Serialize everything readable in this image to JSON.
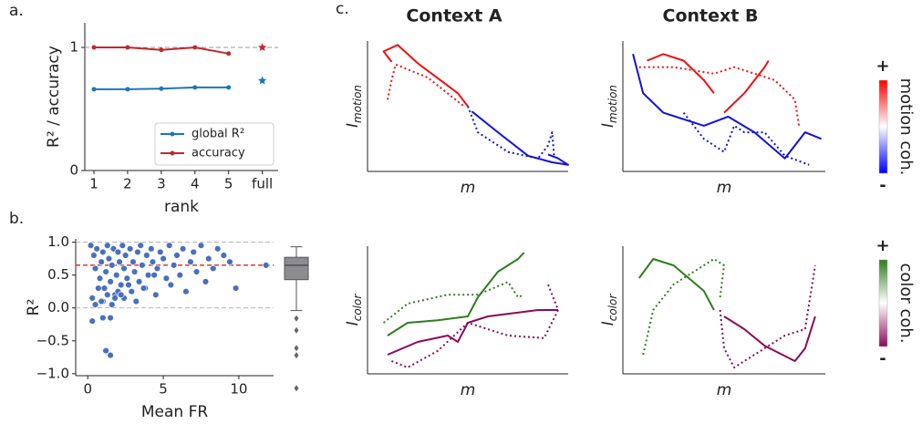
{
  "panel_labels": [
    "a.",
    "b.",
    "c."
  ],
  "chart_data": [
    {
      "type": "line",
      "xlabel": "rank",
      "ylabel": "R² / accuracy",
      "categories": [
        "1",
        "2",
        "3",
        "4",
        "5",
        "full"
      ],
      "ylim": [
        0,
        1.2
      ],
      "yticks": [
        0,
        1
      ],
      "hlines": [
        {
          "value": 1,
          "color": "#999999"
        }
      ],
      "last_point_marker": "star",
      "legend": "lower right",
      "series": [
        {
          "name": "global R²",
          "color": "#1f77b4",
          "values": [
            0.66,
            0.66,
            0.665,
            0.675,
            0.675,
            0.73
          ]
        },
        {
          "name": "accuracy",
          "color": "#c0282d",
          "values": [
            1.0,
            1.0,
            0.98,
            1.0,
            0.95,
            1.0
          ]
        }
      ]
    },
    {
      "type": "scatter",
      "xlabel": "Mean FR",
      "ylabel": "R²",
      "xlim": [
        -0.8,
        12.3
      ],
      "xticks": [
        0,
        5,
        10
      ],
      "ylim": [
        -1.03,
        1.05
      ],
      "yticks": [
        {
          "value": -1,
          "label": "−1.0"
        },
        {
          "value": -0.5,
          "label": "−0.5"
        },
        {
          "value": 0,
          "label": "0.0"
        },
        {
          "value": 0.5,
          "label": "0.5"
        },
        {
          "value": 1,
          "label": "1.0"
        }
      ],
      "hlines": [
        {
          "value": 1,
          "color": "#aaaaaa"
        },
        {
          "value": 0,
          "color": "#aaaaaa"
        },
        {
          "value": 0.65,
          "color": "#d62728"
        }
      ],
      "color": "#4a6fbf",
      "x": [
        0.2,
        0.4,
        0.5,
        0.6,
        0.8,
        0.9,
        1.0,
        1.1,
        1.2,
        1.3,
        1.4,
        1.5,
        1.6,
        1.7,
        1.8,
        1.9,
        2.0,
        2.1,
        2.2,
        2.3,
        2.4,
        2.5,
        2.6,
        2.8,
        2.9,
        3.0,
        3.1,
        3.3,
        3.4,
        3.5,
        3.6,
        3.8,
        3.9,
        4.0,
        4.2,
        4.3,
        4.5,
        4.6,
        4.8,
        5.0,
        5.2,
        5.4,
        5.5,
        5.7,
        5.9,
        6.1,
        6.3,
        6.5,
        6.8,
        7.0,
        7.2,
        7.5,
        7.8,
        8.0,
        8.3,
        8.6,
        9.0,
        9.4,
        9.8,
        11.8,
        0.3,
        0.7,
        1.0,
        1.3,
        1.6,
        2.0,
        2.4,
        2.7,
        3.2,
        3.7,
        4.4,
        0.3,
        1.0,
        1.5,
        1.2,
        1.5,
        0.5,
        0.9,
        1.8,
        2.2
      ],
      "values": [
        0.95,
        0.8,
        0.6,
        0.9,
        0.45,
        0.7,
        0.85,
        0.3,
        0.55,
        0.95,
        0.75,
        0.4,
        0.65,
        0.9,
        0.2,
        0.5,
        0.85,
        0.7,
        0.35,
        0.95,
        0.6,
        0.8,
        0.45,
        0.9,
        0.25,
        0.7,
        0.55,
        0.85,
        0.4,
        0.95,
        0.65,
        0.3,
        0.8,
        0.5,
        0.9,
        0.7,
        0.2,
        0.6,
        0.85,
        0.75,
        0.45,
        0.95,
        0.35,
        0.65,
        0.8,
        0.5,
        0.9,
        0.25,
        0.7,
        0.85,
        0.55,
        0.95,
        0.4,
        0.75,
        0.6,
        0.9,
        0.8,
        0.7,
        0.3,
        0.65,
        0.15,
        0.3,
        0.1,
        0.2,
        0.05,
        0.25,
        0.15,
        0.35,
        0.1,
        0.3,
        0.5,
        -0.2,
        -0.15,
        -0.15,
        -0.65,
        -0.72,
        0.05,
        0.1,
        0.15,
        0.2
      ],
      "box": {
        "whislo": -0.04,
        "q1": 0.43,
        "med": 0.65,
        "q3": 0.77,
        "whishi": 0.93,
        "fliers": [
          -0.16,
          -0.34,
          -0.61,
          -0.72,
          -1.22
        ],
        "color": "#8c8c90"
      }
    },
    {
      "type": "line",
      "title": "Context A",
      "title_color": "#7b1a4e",
      "xlabel": "m",
      "ylabel": "I",
      "ylabel_sub": "motion",
      "xlim": [
        0,
        1
      ],
      "ylim": [
        0,
        1
      ],
      "series": [
        {
          "color": "#ee1111",
          "dash": false,
          "x": [
            0.12,
            0.08,
            0.15,
            0.25,
            0.45,
            0.5
          ],
          "values": [
            0.84,
            0.92,
            0.97,
            0.83,
            0.6,
            0.5
          ]
        },
        {
          "color": "#ee1111",
          "dash": true,
          "x": [
            0.1,
            0.12,
            0.14,
            0.3,
            0.48
          ],
          "values": [
            0.55,
            0.7,
            0.82,
            0.72,
            0.5
          ]
        },
        {
          "color": "#1111dd",
          "dash": false,
          "x": [
            0.52,
            0.65,
            0.8,
            0.92,
            1.0,
            0.95,
            0.9
          ],
          "values": [
            0.46,
            0.3,
            0.12,
            0.07,
            0.05,
            0.1,
            0.13
          ]
        },
        {
          "color": "#1111dd",
          "dash": true,
          "x": [
            0.5,
            0.55,
            0.7,
            0.85,
            0.9,
            0.92,
            0.93
          ],
          "values": [
            0.5,
            0.3,
            0.15,
            0.1,
            0.2,
            0.3,
            0.12
          ]
        }
      ]
    },
    {
      "type": "line",
      "title": "Context B",
      "title_color": "#b08a4a",
      "xlabel": "m",
      "ylabel": "I",
      "ylabel_sub": "motion",
      "xlim": [
        0,
        1
      ],
      "ylim": [
        0,
        1
      ],
      "series": [
        {
          "color": "#ee1111",
          "dash": false,
          "x": [
            0.12,
            0.2,
            0.3,
            0.4,
            0.45
          ],
          "values": [
            0.85,
            0.9,
            0.85,
            0.7,
            0.6
          ]
        },
        {
          "color": "#ee1111",
          "dash": false,
          "x": [
            0.5,
            0.6,
            0.7,
            0.72
          ],
          "values": [
            0.45,
            0.6,
            0.8,
            0.85
          ]
        },
        {
          "color": "#ee1111",
          "dash": true,
          "x": [
            0.08,
            0.25,
            0.45,
            0.55,
            0.75,
            0.85,
            0.87
          ],
          "values": [
            0.8,
            0.8,
            0.75,
            0.8,
            0.7,
            0.55,
            0.35
          ]
        },
        {
          "color": "#1111dd",
          "dash": false,
          "x": [
            0.05,
            0.1,
            0.2,
            0.4,
            0.52,
            0.65,
            0.8,
            0.9,
            0.98
          ],
          "values": [
            0.9,
            0.6,
            0.45,
            0.35,
            0.42,
            0.3,
            0.1,
            0.3,
            0.25
          ]
        },
        {
          "color": "#1111dd",
          "dash": true,
          "x": [
            0.3,
            0.35,
            0.4,
            0.45,
            0.5,
            0.55,
            0.6,
            0.7,
            0.8,
            0.92
          ],
          "values": [
            0.45,
            0.35,
            0.25,
            0.2,
            0.15,
            0.35,
            0.3,
            0.3,
            0.12,
            0.05
          ]
        }
      ]
    },
    {
      "type": "line",
      "xlabel": "m",
      "ylabel": "I",
      "ylabel_sub": "color",
      "xlim": [
        0,
        1
      ],
      "ylim": [
        0,
        1
      ],
      "series": [
        {
          "color": "#2e7d1e",
          "dash": false,
          "x": [
            0.1,
            0.2,
            0.35,
            0.5,
            0.55,
            0.65,
            0.75,
            0.78
          ],
          "values": [
            0.3,
            0.4,
            0.42,
            0.45,
            0.6,
            0.8,
            0.9,
            0.95
          ]
        },
        {
          "color": "#2e7d1e",
          "dash": true,
          "x": [
            0.08,
            0.2,
            0.4,
            0.55,
            0.7,
            0.75,
            0.78
          ],
          "values": [
            0.4,
            0.55,
            0.62,
            0.62,
            0.72,
            0.6,
            0.62
          ]
        },
        {
          "color": "#8b0a5a",
          "dash": false,
          "x": [
            0.1,
            0.25,
            0.4,
            0.45,
            0.5,
            0.6,
            0.85,
            0.95
          ],
          "values": [
            0.15,
            0.25,
            0.3,
            0.25,
            0.4,
            0.45,
            0.5,
            0.5
          ]
        },
        {
          "color": "#8b0a5a",
          "dash": true,
          "x": [
            0.12,
            0.2,
            0.35,
            0.5,
            0.7,
            0.88,
            0.95,
            0.9
          ],
          "values": [
            0.1,
            0.05,
            0.18,
            0.4,
            0.3,
            0.28,
            0.5,
            0.7
          ]
        }
      ]
    },
    {
      "type": "line",
      "xlabel": "m",
      "ylabel": "I",
      "ylabel_sub": "color",
      "xlim": [
        0,
        1
      ],
      "ylim": [
        0,
        1
      ],
      "series": [
        {
          "color": "#2e7d1e",
          "dash": false,
          "x": [
            0.08,
            0.15,
            0.25,
            0.4,
            0.45
          ],
          "values": [
            0.75,
            0.9,
            0.85,
            0.65,
            0.5
          ]
        },
        {
          "color": "#2e7d1e",
          "dash": true,
          "x": [
            0.1,
            0.15,
            0.25,
            0.35,
            0.45,
            0.5,
            0.48
          ],
          "values": [
            0.15,
            0.5,
            0.7,
            0.8,
            0.9,
            0.85,
            0.6
          ]
        },
        {
          "color": "#8b0a5a",
          "dash": false,
          "x": [
            0.5,
            0.6,
            0.7,
            0.85,
            0.9,
            0.95
          ],
          "values": [
            0.45,
            0.35,
            0.22,
            0.1,
            0.2,
            0.45
          ]
        },
        {
          "color": "#8b0a5a",
          "dash": true,
          "x": [
            0.48,
            0.5,
            0.55,
            0.65,
            0.8,
            0.9,
            0.95
          ],
          "values": [
            0.5,
            0.2,
            0.05,
            0.15,
            0.3,
            0.35,
            0.85
          ]
        }
      ]
    }
  ],
  "colorbars": [
    {
      "label": "motion coh.",
      "plus": "+",
      "minus": "-",
      "colors": [
        "#0000ff",
        "#ffffff",
        "#ff0000"
      ]
    },
    {
      "label": "color coh.",
      "plus": "+",
      "minus": "-",
      "colors": [
        "#8b0a5a",
        "#ffffff",
        "#2e7d1e"
      ]
    }
  ]
}
